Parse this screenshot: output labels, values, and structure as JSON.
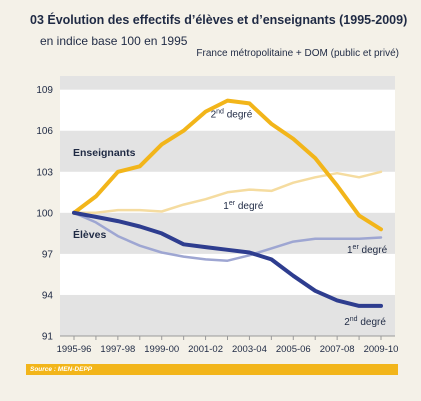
{
  "header": {
    "title": "03 Évolution des effectifs d’élèves et d’enseignants (1995-2009)",
    "subtitle": "en indice base 100 en 1995",
    "scope": "France métropolitaine + DOM (public et privé)"
  },
  "footer": {
    "source": "Source : MEN-DEPP"
  },
  "colors": {
    "teachers": "#f2b51a",
    "teachers_light": "#f5dca0",
    "students": "#2e3d8f",
    "students_light": "#9ea6d2",
    "band": "#e3e3e3"
  },
  "chart_data": {
    "type": "line",
    "x": [
      "1995-96",
      "1996-97",
      "1997-98",
      "1998-99",
      "1999-00",
      "2000-01",
      "2001-02",
      "2002-03",
      "2003-04",
      "2004-05",
      "2005-06",
      "2006-07",
      "2007-08",
      "2008-09",
      "2009-10"
    ],
    "x_tick_labels": [
      "1995-96",
      "1997-98",
      "1999-00",
      "2001-02",
      "2003-04",
      "2005-06",
      "2007-08",
      "2009-10"
    ],
    "y_ticks": [
      "91",
      "94",
      "97",
      "100",
      "103",
      "106",
      "109"
    ],
    "ylim": [
      91,
      110
    ],
    "group_labels": {
      "teachers": "Enseignants",
      "students": "Élèves"
    },
    "series": [
      {
        "id": "teachers-2nd",
        "group": "teachers",
        "degree": "2",
        "values": [
          100,
          101.2,
          103,
          103.4,
          105,
          106,
          107.4,
          108.2,
          108,
          106.5,
          105.4,
          104,
          102,
          99.8,
          98.8
        ]
      },
      {
        "id": "teachers-1st",
        "group": "teachers",
        "degree": "1",
        "values": [
          100,
          100,
          100.2,
          100.2,
          100.1,
          100.6,
          101,
          101.5,
          101.7,
          101.6,
          102.2,
          102.6,
          102.9,
          102.6,
          103
        ]
      },
      {
        "id": "students-1st",
        "group": "students",
        "degree": "1",
        "values": [
          100,
          99.3,
          98.3,
          97.6,
          97.1,
          96.8,
          96.6,
          96.5,
          96.9,
          97.4,
          97.9,
          98.1,
          98.1,
          98.1,
          98.2
        ]
      },
      {
        "id": "students-2nd",
        "group": "students",
        "degree": "2",
        "values": [
          100,
          99.7,
          99.4,
          99,
          98.5,
          97.7,
          97.5,
          97.3,
          97.1,
          96.6,
          95.4,
          94.3,
          93.6,
          93.2,
          93.2
        ]
      }
    ],
    "series_labels": [
      {
        "series": "teachers-2nd",
        "text": "2nd degré",
        "base": "2",
        "sup": "nd",
        "rest": " degré"
      },
      {
        "series": "teachers-1st",
        "text": "1er degré",
        "base": "1",
        "sup": "er",
        "rest": " degré"
      },
      {
        "series": "students-1st",
        "text": "1er degré",
        "base": "1",
        "sup": "er",
        "rest": " degré"
      },
      {
        "series": "students-2nd",
        "text": "2nd degré",
        "base": "2",
        "sup": "nd",
        "rest": " degré"
      }
    ]
  }
}
